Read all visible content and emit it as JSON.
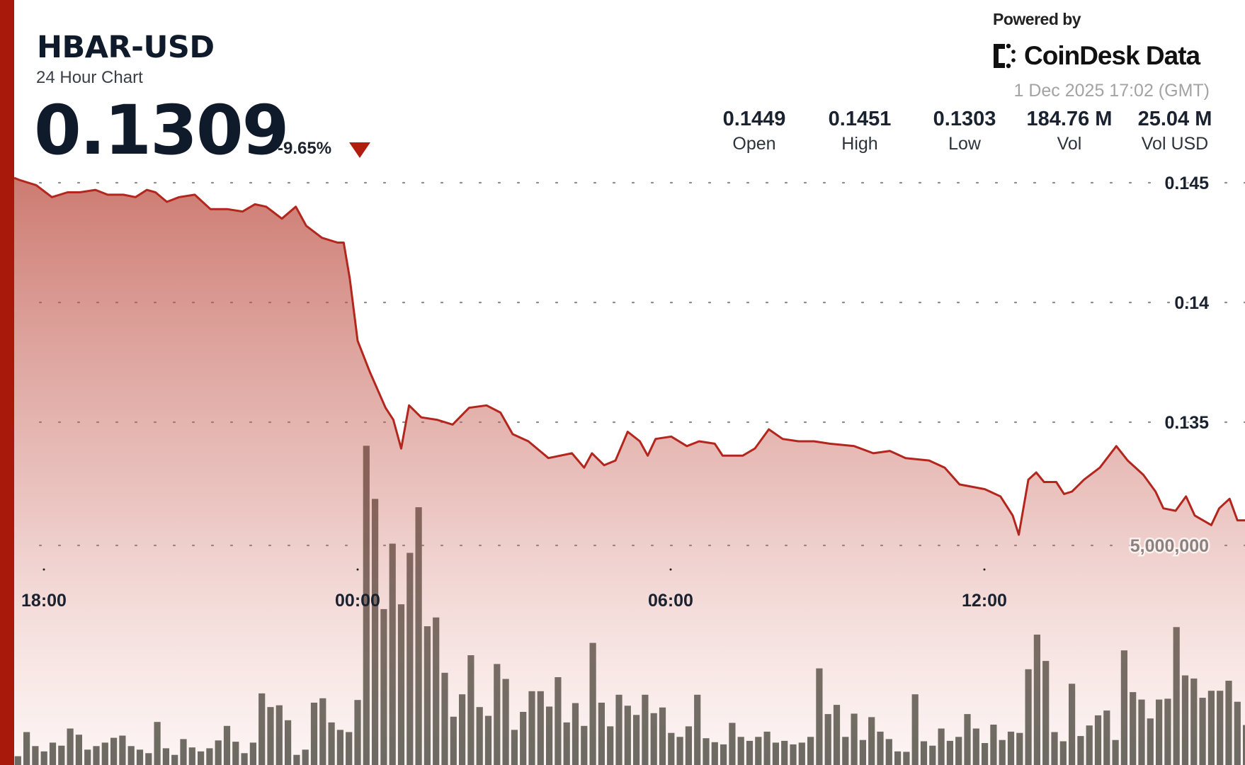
{
  "header": {
    "pair": "HBAR-USD",
    "subtitle": "24 Hour Chart",
    "price": "0.1309",
    "change": "-9.65%",
    "change_direction_icon": "triangle-down-icon"
  },
  "branding": {
    "powered_by": "Powered by",
    "logo_text": "CoinDesk Data",
    "timestamp": "1 Dec 2025 17:02 (GMT)"
  },
  "stats": [
    {
      "value": "0.1449",
      "label": "Open"
    },
    {
      "value": "0.1451",
      "label": "High"
    },
    {
      "value": "0.1303",
      "label": "Low"
    },
    {
      "value": "184.76 M",
      "label": "Vol"
    },
    {
      "value": "25.04 M",
      "label": "Vol USD"
    }
  ],
  "colors": {
    "accent": "#a8190c",
    "line": "#b3261e",
    "down": "#b11e10",
    "volume_bar": "#5b625a"
  },
  "chart_data": {
    "type": "line",
    "grid": true,
    "x_ticks": [
      "18:00",
      "00:00",
      "06:00",
      "12:00"
    ],
    "y_ticks": [
      {
        "value": 0.145,
        "label": "0.145"
      },
      {
        "value": 0.14,
        "label": "0.14"
      },
      {
        "value": 0.135,
        "label": "0.135"
      }
    ],
    "volume_tick": {
      "value": 5000000,
      "label": "5,000,000"
    },
    "series": [
      {
        "type": "area",
        "points": [
          [
            "17:26",
            0.1452
          ],
          [
            "17:33",
            0.1451
          ],
          [
            "17:51",
            0.1449
          ],
          [
            "18:09",
            0.1444
          ],
          [
            "18:27",
            0.1446
          ],
          [
            "18:41",
            0.1446
          ],
          [
            "18:59",
            0.1447
          ],
          [
            "19:13",
            0.1445
          ],
          [
            "19:31",
            0.1445
          ],
          [
            "19:45",
            0.1444
          ],
          [
            "19:58",
            0.1447
          ],
          [
            "20:08",
            0.1446
          ],
          [
            "20:21",
            0.1442
          ],
          [
            "20:35",
            0.1444
          ],
          [
            "20:53",
            0.1445
          ],
          [
            "21:11",
            0.1439
          ],
          [
            "21:30",
            0.1439
          ],
          [
            "21:48",
            0.1438
          ],
          [
            "22:02",
            0.1441
          ],
          [
            "22:15",
            0.144
          ],
          [
            "22:33",
            0.1435
          ],
          [
            "22:49",
            0.144
          ],
          [
            "23:01",
            0.1432
          ],
          [
            "23:19",
            0.1427
          ],
          [
            "23:37",
            0.1425
          ],
          [
            "23:44",
            0.1425
          ],
          [
            "23:51",
            0.141
          ],
          [
            "00:00",
            0.1384
          ],
          [
            "00:14",
            0.1371
          ],
          [
            "00:32",
            0.1356
          ],
          [
            "00:41",
            0.1351
          ],
          [
            "00:50",
            0.1339
          ],
          [
            "00:59",
            0.1357
          ],
          [
            "01:13",
            0.1352
          ],
          [
            "01:31",
            0.1351
          ],
          [
            "01:49",
            0.1349
          ],
          [
            "02:08",
            0.1356
          ],
          [
            "02:28",
            0.1357
          ],
          [
            "02:44",
            0.1354
          ],
          [
            "02:58",
            0.1345
          ],
          [
            "03:16",
            0.1342
          ],
          [
            "03:39",
            0.1335
          ],
          [
            "04:06",
            0.1337
          ],
          [
            "04:20",
            0.1331
          ],
          [
            "04:29",
            0.1337
          ],
          [
            "04:43",
            0.1332
          ],
          [
            "04:56",
            0.1334
          ],
          [
            "05:10",
            0.1346
          ],
          [
            "05:24",
            0.1342
          ],
          [
            "05:33",
            0.1336
          ],
          [
            "05:42",
            0.1343
          ],
          [
            "06:00",
            0.1344
          ],
          [
            "06:18",
            0.134
          ],
          [
            "06:32",
            0.1342
          ],
          [
            "06:50",
            0.1341
          ],
          [
            "06:59",
            0.1336
          ],
          [
            "07:22",
            0.1336
          ],
          [
            "07:36",
            0.1339
          ],
          [
            "07:52",
            0.1347
          ],
          [
            "08:08",
            0.1343
          ],
          [
            "08:26",
            0.1342
          ],
          [
            "08:44",
            0.1342
          ],
          [
            "09:02",
            0.1341
          ],
          [
            "09:30",
            0.134
          ],
          [
            "09:52",
            0.1337
          ],
          [
            "10:11",
            0.1338
          ],
          [
            "10:29",
            0.1335
          ],
          [
            "10:56",
            0.1334
          ],
          [
            "11:14",
            0.1331
          ],
          [
            "11:31",
            0.1324
          ],
          [
            "12:00",
            0.1322
          ],
          [
            "12:18",
            0.1319
          ],
          [
            "12:32",
            0.1311
          ],
          [
            "12:39",
            0.1303
          ],
          [
            "12:50",
            0.1326
          ],
          [
            "12:59",
            0.1329
          ],
          [
            "13:08",
            0.1325
          ],
          [
            "13:22",
            0.1325
          ],
          [
            "13:31",
            0.132
          ],
          [
            "13:40",
            0.1321
          ],
          [
            "13:54",
            0.1326
          ],
          [
            "14:12",
            0.1331
          ],
          [
            "14:31",
            0.134
          ],
          [
            "14:44",
            0.1334
          ],
          [
            "15:02",
            0.1328
          ],
          [
            "15:16",
            0.1321
          ],
          [
            "15:25",
            0.1314
          ],
          [
            "15:39",
            0.1313
          ],
          [
            "15:51",
            0.1319
          ],
          [
            "16:01",
            0.1311
          ],
          [
            "16:20",
            0.1307
          ],
          [
            "16:29",
            0.1314
          ],
          [
            "16:41",
            0.1318
          ],
          [
            "16:50",
            0.1309
          ],
          [
            "16:59",
            0.1309
          ]
        ]
      },
      {
        "type": "bar",
        "start": "17:30",
        "interval_minutes": 10,
        "values_millions": [
          0.2,
          0.75,
          0.43,
          0.31,
          0.51,
          0.44,
          0.83,
          0.69,
          0.35,
          0.43,
          0.51,
          0.62,
          0.67,
          0.43,
          0.35,
          0.27,
          0.98,
          0.38,
          0.23,
          0.59,
          0.4,
          0.31,
          0.38,
          0.56,
          0.89,
          0.53,
          0.27,
          0.51,
          1.63,
          1.32,
          1.36,
          1.02,
          0.23,
          0.35,
          1.42,
          1.52,
          0.97,
          0.8,
          0.75,
          1.48,
          7.27,
          6.06,
          3.55,
          5.04,
          3.66,
          4.83,
          5.87,
          3.16,
          3.36,
          2.1,
          1.1,
          1.61,
          2.5,
          1.32,
          1.12,
          2.3,
          1.96,
          0.8,
          1.21,
          1.68,
          1.68,
          1.33,
          2.0,
          0.97,
          1.41,
          0.89,
          2.78,
          1.42,
          0.88,
          1.6,
          1.35,
          1.14,
          1.6,
          1.18,
          1.31,
          0.73,
          0.64,
          0.88,
          1.6,
          0.61,
          0.52,
          0.47,
          0.96,
          0.64,
          0.55,
          0.64,
          0.76,
          0.51,
          0.55,
          0.47,
          0.51,
          0.64,
          2.2,
          1.16,
          1.37,
          0.64,
          1.17,
          0.57,
          1.09,
          0.76,
          0.59,
          0.31,
          0.3,
          1.61,
          0.54,
          0.44,
          0.83,
          0.55,
          0.64,
          1.16,
          0.83,
          0.5,
          0.92,
          0.57,
          0.76,
          0.73,
          2.18,
          2.97,
          2.37,
          0.75,
          0.54,
          1.85,
          0.66,
          0.9,
          1.13,
          1.24,
          0.57,
          2.61,
          1.66,
          1.49,
          1.06,
          1.49,
          1.51,
          3.14,
          2.04,
          1.97,
          1.53,
          1.69,
          1.69,
          1.92,
          1.44,
          0.91
        ]
      }
    ]
  }
}
